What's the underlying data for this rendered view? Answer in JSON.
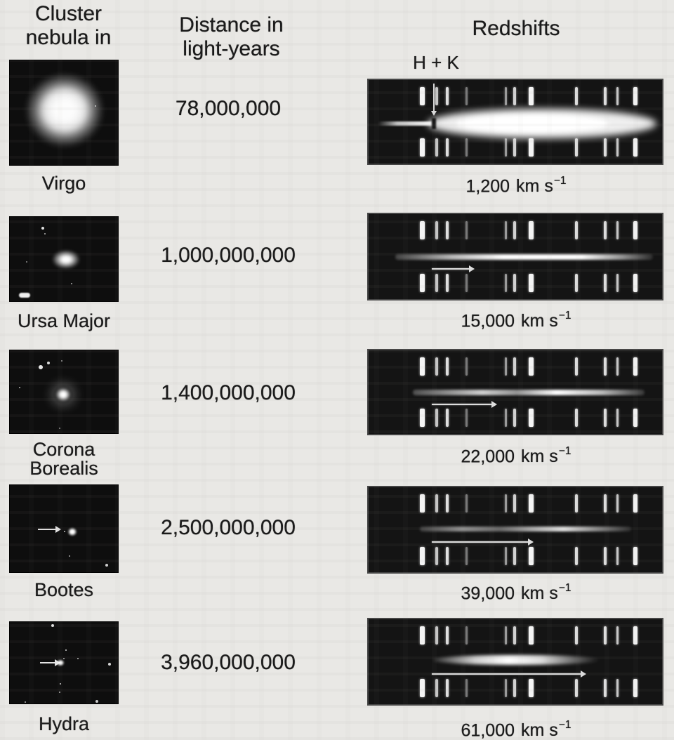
{
  "header": {
    "cluster_line1": "Cluster",
    "cluster_line2": "nebula in",
    "distance_line1": "Distance in",
    "distance_line2": "light-years",
    "redshifts": "Redshifts",
    "hk": "H + K"
  },
  "labels": {
    "velocity_unit": "km s",
    "velocity_exponent": "−1"
  },
  "rows": [
    {
      "cluster": "Virgo",
      "distance_ly": "78,000,000",
      "velocity": "1,200"
    },
    {
      "cluster": "Ursa Major",
      "distance_ly": "1,000,000,000",
      "velocity": "15,000"
    },
    {
      "cluster": "Corona Borealis",
      "distance_ly": "1,400,000,000",
      "velocity": "22,000"
    },
    {
      "cluster": "Bootes",
      "distance_ly": "2,500,000,000",
      "velocity": "39,000"
    },
    {
      "cluster": "Hydra",
      "distance_ly": "3,960,000,000",
      "velocity": "61,000"
    }
  ],
  "spectra": {
    "rest_line_pct": 21.5,
    "comparison_lines": [
      {
        "pct": 17.5,
        "w": 7,
        "op": 1
      },
      {
        "pct": 22.8,
        "w": 4,
        "op": 0.8
      },
      {
        "pct": 26.3,
        "w": 4,
        "op": 0.9
      },
      {
        "pct": 33.0,
        "w": 3,
        "op": 0.45
      },
      {
        "pct": 46.4,
        "w": 3,
        "op": 0.6
      },
      {
        "pct": 49.3,
        "w": 4,
        "op": 0.85
      },
      {
        "pct": 54.5,
        "w": 7,
        "op": 1
      },
      {
        "pct": 70.4,
        "w": 4,
        "op": 0.9
      },
      {
        "pct": 80.1,
        "w": 4,
        "op": 0.9
      },
      {
        "pct": 84.4,
        "w": 3,
        "op": 0.8
      },
      {
        "pct": 90.3,
        "w": 6,
        "op": 1
      }
    ],
    "rows": [
      {
        "cluster": "Virgo",
        "arrow_end_pct": null
      },
      {
        "cluster": "Ursa Major",
        "arrow_end_pct": 34.5
      },
      {
        "cluster": "Corona Borealis",
        "arrow_end_pct": 42.0
      },
      {
        "cluster": "Bootes",
        "arrow_end_pct": 54.5
      },
      {
        "cluster": "Hydra",
        "arrow_end_pct": 72.5
      }
    ]
  }
}
